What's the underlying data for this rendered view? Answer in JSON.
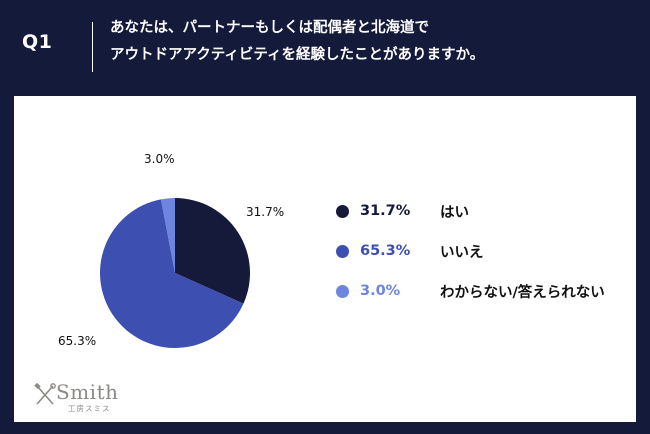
{
  "header": {
    "q_label": "Q1",
    "question_line1": "あなたは、パートナーもしくは配偶者と北海道で",
    "question_line2": "アウトドアアクティビティを経験したことがありますか。"
  },
  "chart_data": {
    "type": "pie",
    "slices": [
      {
        "label": "はい",
        "value": 31.7,
        "value_label": "31.7%",
        "color": "#151a3b"
      },
      {
        "label": "いいえ",
        "value": 65.3,
        "value_label": "65.3%",
        "color": "#3d4fb0"
      },
      {
        "label": "わからない/答えられない",
        "value": 3.0,
        "value_label": "3.0%",
        "color": "#6d85df"
      }
    ],
    "legend_position": "right"
  },
  "logo": {
    "word": "Smith",
    "sub": "工房スミス"
  }
}
